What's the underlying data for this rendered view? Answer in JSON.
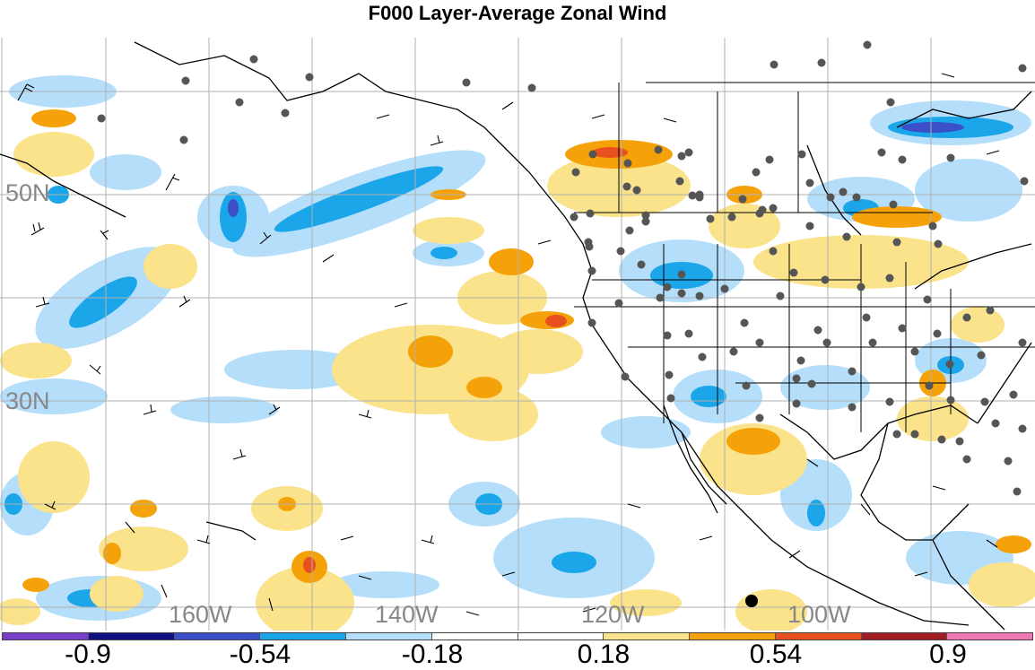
{
  "title": "F000 Layer-Average Zonal Wind",
  "map": {
    "lat_labels": [
      "50N",
      "30N"
    ],
    "lon_labels": [
      "160W",
      "140W",
      "120W",
      "100W"
    ],
    "projection_region": "North-East Pacific and Western North America"
  },
  "colorbar": {
    "colors": [
      "#7a3fc8",
      "#101080",
      "#3a4fc8",
      "#1aa6e8",
      "#b4defa",
      "#ffffff",
      "#ffffff",
      "#fae38a",
      "#f5a20a",
      "#e85020",
      "#a01c20",
      "#ef78b4"
    ],
    "tick_labels": [
      "-0.9",
      "-0.54",
      "-0.18",
      "0.18",
      "0.54",
      "0.9"
    ]
  },
  "colors": {
    "positive_light": "#fae38a",
    "positive_mid": "#f5a20a",
    "positive_strong": "#e85020",
    "negative_light": "#b4defa",
    "negative_mid": "#1aa6e8",
    "negative_strong": "#3a4fc8",
    "station_dot": "#555555",
    "grid": "#b0b0b0"
  }
}
